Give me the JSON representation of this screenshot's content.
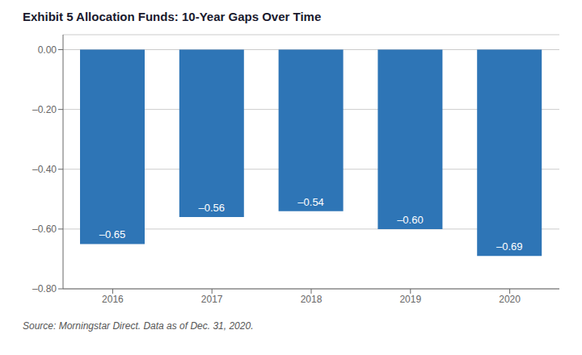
{
  "chart_data": {
    "type": "bar",
    "title": "Exhibit 5 Allocation Funds: 10-Year Gaps Over Time",
    "annotations": [
      "Source: Morningstar Direct. Data as of Dec. 31, 2020."
    ],
    "categories": [
      "2016",
      "2017",
      "2018",
      "2019",
      "2020"
    ],
    "values": [
      -0.65,
      -0.56,
      -0.54,
      -0.6,
      -0.69
    ],
    "value_labels": [
      "–0.65",
      "–0.56",
      "–0.54",
      "–0.60",
      "–0.69"
    ],
    "data_labels": true,
    "color": "#2E75B6",
    "ylim": [
      -0.8,
      0.05
    ],
    "yticks": [
      {
        "value": 0,
        "label": "0.00"
      },
      {
        "value": -0.2,
        "label": "–0.20"
      },
      {
        "value": -0.4,
        "label": "–0.40"
      },
      {
        "value": -0.6,
        "label": "–0.60"
      },
      {
        "value": -0.8,
        "label": "–0.80"
      }
    ],
    "grid": true
  }
}
